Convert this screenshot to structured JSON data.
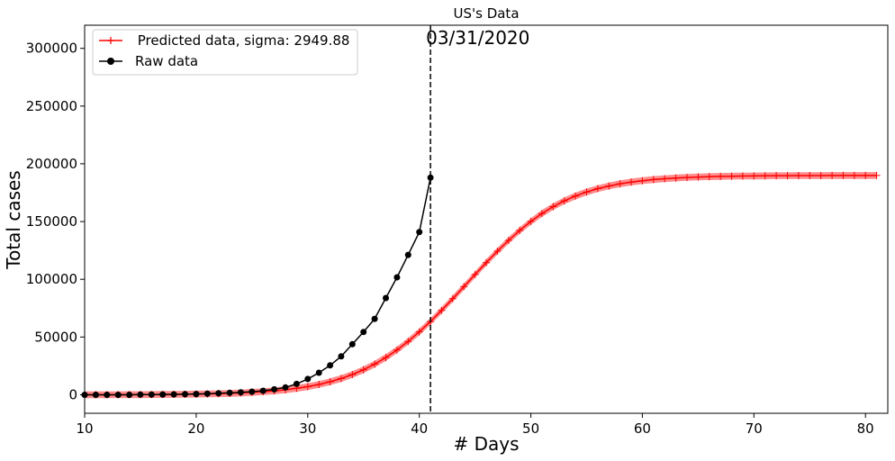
{
  "chart_data": {
    "type": "line",
    "title": "US's Data",
    "xlabel": "# Days",
    "ylabel": "Total cases",
    "xlim": [
      10,
      82
    ],
    "ylim": [
      -16000,
      320000
    ],
    "xticks": [
      10,
      20,
      30,
      40,
      50,
      60,
      70,
      80
    ],
    "yticks": [
      0,
      50000,
      100000,
      150000,
      200000,
      250000,
      300000
    ],
    "grid": false,
    "legend_position": "top-left",
    "vline": {
      "x": 41,
      "label": "03/31/2020",
      "style": "dashed",
      "color": "#000000"
    },
    "series": [
      {
        "name": " Predicted data, sigma: 2949.88",
        "color": "#ff0000",
        "marker": "plus",
        "sigma": 2949.88,
        "x": [
          10,
          11,
          12,
          13,
          14,
          15,
          16,
          17,
          18,
          19,
          20,
          21,
          22,
          23,
          24,
          25,
          26,
          27,
          28,
          29,
          30,
          31,
          32,
          33,
          34,
          35,
          36,
          37,
          38,
          39,
          40,
          41,
          42,
          43,
          44,
          45,
          46,
          47,
          48,
          49,
          50,
          51,
          52,
          53,
          54,
          55,
          56,
          57,
          58,
          59,
          60,
          61,
          62,
          63,
          64,
          65,
          66,
          67,
          68,
          69,
          70,
          71,
          72,
          73,
          74,
          75,
          76,
          77,
          78,
          79,
          80,
          81
        ],
        "values": [
          45,
          58,
          75,
          97,
          125,
          162,
          209,
          270,
          349,
          450,
          581,
          750,
          968,
          1250,
          1610,
          2070,
          2660,
          3410,
          4360,
          5560,
          7060,
          8930,
          11250,
          14090,
          17540,
          21680,
          26570,
          32280,
          38840,
          46240,
          54470,
          63460,
          73090,
          83200,
          93600,
          104100,
          114400,
          124300,
          133700,
          142300,
          150100,
          157000,
          162900,
          167900,
          172100,
          175600,
          178500,
          180800,
          182700,
          184200,
          185400,
          186400,
          187100,
          187700,
          188200,
          188600,
          188900,
          189100,
          189300,
          189400,
          189500,
          189600,
          189700,
          189700,
          189800,
          189800,
          189800,
          189900,
          189900,
          189900,
          189900,
          189900
        ]
      },
      {
        "name": "Raw data",
        "color": "#000000",
        "marker": "circle",
        "x": [
          10,
          11,
          12,
          13,
          14,
          15,
          16,
          17,
          18,
          19,
          20,
          21,
          22,
          23,
          24,
          25,
          26,
          27,
          28,
          29,
          30,
          31,
          32,
          33,
          34,
          35,
          36,
          37,
          38,
          39,
          40,
          41
        ],
        "values": [
          0,
          0,
          0,
          0,
          0,
          100,
          200,
          300,
          400,
          500,
          700,
          1000,
          1300,
          1700,
          2200,
          2700,
          3500,
          4700,
          6400,
          9400,
          13700,
          19100,
          25500,
          33300,
          43800,
          54400,
          65800,
          83800,
          101700,
          121100,
          140900,
          188000
        ]
      }
    ]
  }
}
